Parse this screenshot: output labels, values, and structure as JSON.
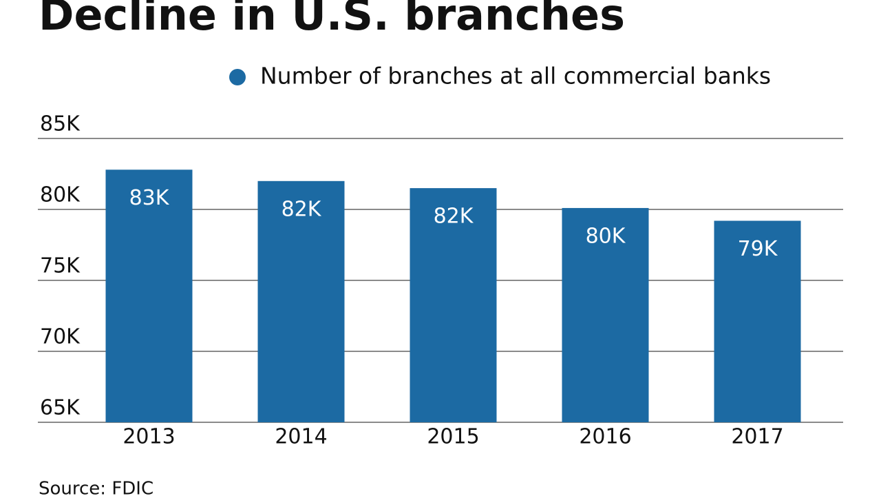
{
  "chart_data": {
    "type": "bar",
    "title": "Decline in U.S. branches",
    "source": "Source: FDIC",
    "categories": [
      "2013",
      "2014",
      "2015",
      "2016",
      "2017"
    ],
    "series": [
      {
        "name": "Number of branches at all commercial banks",
        "color": "#1c6aa3",
        "values": [
          82800,
          82000,
          81500,
          80100,
          79200
        ],
        "value_labels": [
          "83K",
          "82K",
          "82K",
          "80K",
          "79K"
        ]
      }
    ],
    "ylim": [
      65000,
      85000
    ],
    "yticks": [
      {
        "value": 65000,
        "label": "65K"
      },
      {
        "value": 70000,
        "label": "70K"
      },
      {
        "value": 75000,
        "label": "75K"
      },
      {
        "value": 80000,
        "label": "80K"
      },
      {
        "value": 85000,
        "label": "85K"
      }
    ],
    "grid": true,
    "legend": "top-right"
  }
}
